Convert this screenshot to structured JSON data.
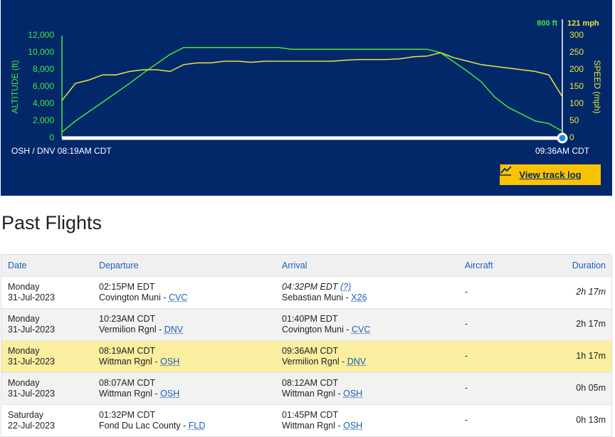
{
  "chart_data": {
    "type": "line",
    "altitude_readout": "800 ft",
    "speed_readout": "121 mph",
    "ylabel": "ALTITUDE (ft)",
    "y2label": "SPEED (mph)",
    "start_label": "OSH / DNV 08:19AM CDT",
    "end_label": "09:36AM CDT",
    "ylim": [
      0,
      12000
    ],
    "yticks": [
      0,
      {
        "value": 2000,
        "label": "2,000"
      },
      {
        "value": 4000,
        "label": "4,000"
      },
      {
        "value": 6000,
        "label": "6,000"
      },
      {
        "value": 8000,
        "label": "8,000"
      },
      {
        "value": 10000,
        "label": "10,000"
      },
      {
        "value": 12000,
        "label": "12,000"
      }
    ],
    "y2lim": [
      0,
      300
    ],
    "y2ticks": [
      0,
      50,
      100,
      150,
      200,
      250,
      300
    ],
    "series": [
      {
        "name": "Altitude",
        "color": "#3ee83e",
        "values": [
          700,
          2000,
          3100,
          4200,
          5300,
          6400,
          7600,
          8700,
          9800,
          10600,
          10600,
          10600,
          10600,
          10600,
          10600,
          10600,
          10600,
          10400,
          10400,
          10400,
          10400,
          10400,
          10400,
          10400,
          10400,
          10400,
          10400,
          10400,
          10000,
          8900,
          7800,
          6600,
          4800,
          3600,
          2800,
          2000,
          1700,
          800
        ]
      },
      {
        "name": "Speed",
        "color": "#e6e63c",
        "axis": "y2",
        "values": [
          110,
          160,
          170,
          185,
          185,
          195,
          200,
          200,
          195,
          215,
          220,
          220,
          225,
          225,
          222,
          225,
          225,
          225,
          225,
          225,
          225,
          228,
          230,
          230,
          230,
          232,
          238,
          240,
          250,
          235,
          225,
          215,
          210,
          205,
          200,
          195,
          185,
          121
        ]
      }
    ]
  },
  "button": "View track log",
  "heading": "Past Flights",
  "table": {
    "columns": [
      "Date",
      "Departure",
      "Arrival",
      "Aircraft",
      "Duration"
    ],
    "rows": [
      {
        "day": "Monday",
        "date": "31-Jul-2023",
        "dep_time": "02:15PM EDT",
        "dep_airport": "Covington Muni",
        "dep_code": "CVC",
        "arr_time": "04:32PM EDT",
        "arr_note": "(?)",
        "arr_airport": "Sebastian Muni",
        "arr_code": "X26",
        "aircraft": "-",
        "duration": "2h 17m"
      },
      {
        "day": "Monday",
        "date": "31-Jul-2023",
        "dep_time": "10:23AM CDT",
        "dep_airport": "Vermilion Rgnl",
        "dep_code": "DNV",
        "arr_time": "01:40PM EDT",
        "arr_airport": "Covington Muni",
        "arr_code": "CVC",
        "aircraft": "-",
        "duration": "2h 17m"
      },
      {
        "day": "Monday",
        "date": "31-Jul-2023",
        "dep_time": "08:19AM CDT",
        "dep_airport": "Wittman Rgnl",
        "dep_code": "OSH",
        "arr_time": "09:36AM CDT",
        "arr_airport": "Vermilion Rgnl",
        "arr_code": "DNV",
        "aircraft": "-",
        "duration": "1h 17m"
      },
      {
        "day": "Monday",
        "date": "31-Jul-2023",
        "dep_time": "08:07AM CDT",
        "dep_airport": "Wittman Rgnl",
        "dep_code": "OSH",
        "arr_time": "08:12AM CDT",
        "arr_airport": "Wittman Rgnl",
        "arr_code": "OSH",
        "aircraft": "-",
        "duration": "0h 05m"
      },
      {
        "day": "Saturday",
        "date": "22-Jul-2023",
        "dep_time": "01:32PM CDT",
        "dep_airport": "Fond Du Lac County",
        "dep_code": "FLD",
        "arr_time": "01:45PM CDT",
        "arr_airport": "Wittman Rgnl",
        "arr_code": "OSH",
        "aircraft": "-",
        "duration": "0h 13m"
      }
    ]
  }
}
